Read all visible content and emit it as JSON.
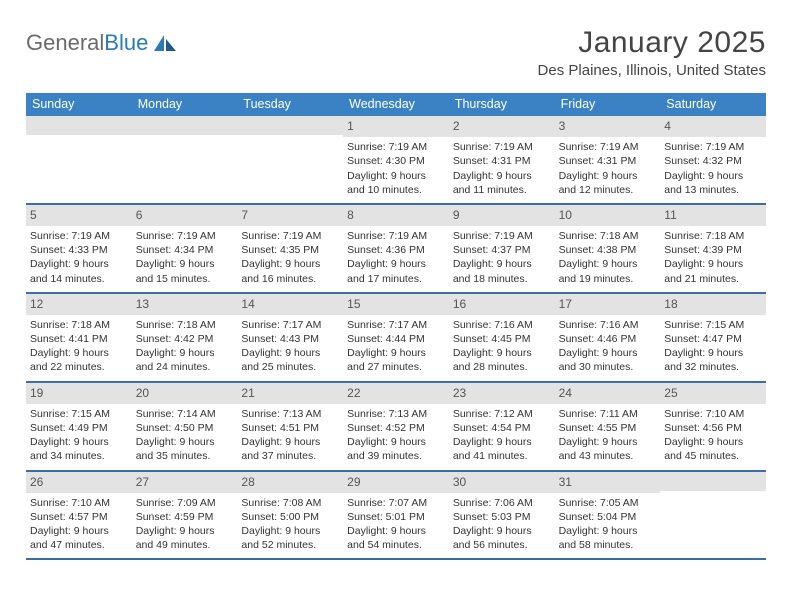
{
  "logo": {
    "word1": "General",
    "word2": "Blue"
  },
  "title": "January 2025",
  "location": "Des Plaines, Illinois, United States",
  "colors": {
    "header_bg": "#3a82c4",
    "header_text": "#ffffff",
    "daynum_bg": "#e3e3e3",
    "week_border": "#3a6ea5",
    "logo_gray": "#6a6a6a",
    "logo_blue": "#2a7ab9"
  },
  "weekdays": [
    "Sunday",
    "Monday",
    "Tuesday",
    "Wednesday",
    "Thursday",
    "Friday",
    "Saturday"
  ],
  "cells": [
    {
      "n": "",
      "l": []
    },
    {
      "n": "",
      "l": []
    },
    {
      "n": "",
      "l": []
    },
    {
      "n": "1",
      "l": [
        "Sunrise: 7:19 AM",
        "Sunset: 4:30 PM",
        "Daylight: 9 hours",
        "and 10 minutes."
      ]
    },
    {
      "n": "2",
      "l": [
        "Sunrise: 7:19 AM",
        "Sunset: 4:31 PM",
        "Daylight: 9 hours",
        "and 11 minutes."
      ]
    },
    {
      "n": "3",
      "l": [
        "Sunrise: 7:19 AM",
        "Sunset: 4:31 PM",
        "Daylight: 9 hours",
        "and 12 minutes."
      ]
    },
    {
      "n": "4",
      "l": [
        "Sunrise: 7:19 AM",
        "Sunset: 4:32 PM",
        "Daylight: 9 hours",
        "and 13 minutes."
      ]
    },
    {
      "n": "5",
      "l": [
        "Sunrise: 7:19 AM",
        "Sunset: 4:33 PM",
        "Daylight: 9 hours",
        "and 14 minutes."
      ]
    },
    {
      "n": "6",
      "l": [
        "Sunrise: 7:19 AM",
        "Sunset: 4:34 PM",
        "Daylight: 9 hours",
        "and 15 minutes."
      ]
    },
    {
      "n": "7",
      "l": [
        "Sunrise: 7:19 AM",
        "Sunset: 4:35 PM",
        "Daylight: 9 hours",
        "and 16 minutes."
      ]
    },
    {
      "n": "8",
      "l": [
        "Sunrise: 7:19 AM",
        "Sunset: 4:36 PM",
        "Daylight: 9 hours",
        "and 17 minutes."
      ]
    },
    {
      "n": "9",
      "l": [
        "Sunrise: 7:19 AM",
        "Sunset: 4:37 PM",
        "Daylight: 9 hours",
        "and 18 minutes."
      ]
    },
    {
      "n": "10",
      "l": [
        "Sunrise: 7:18 AM",
        "Sunset: 4:38 PM",
        "Daylight: 9 hours",
        "and 19 minutes."
      ]
    },
    {
      "n": "11",
      "l": [
        "Sunrise: 7:18 AM",
        "Sunset: 4:39 PM",
        "Daylight: 9 hours",
        "and 21 minutes."
      ]
    },
    {
      "n": "12",
      "l": [
        "Sunrise: 7:18 AM",
        "Sunset: 4:41 PM",
        "Daylight: 9 hours",
        "and 22 minutes."
      ]
    },
    {
      "n": "13",
      "l": [
        "Sunrise: 7:18 AM",
        "Sunset: 4:42 PM",
        "Daylight: 9 hours",
        "and 24 minutes."
      ]
    },
    {
      "n": "14",
      "l": [
        "Sunrise: 7:17 AM",
        "Sunset: 4:43 PM",
        "Daylight: 9 hours",
        "and 25 minutes."
      ]
    },
    {
      "n": "15",
      "l": [
        "Sunrise: 7:17 AM",
        "Sunset: 4:44 PM",
        "Daylight: 9 hours",
        "and 27 minutes."
      ]
    },
    {
      "n": "16",
      "l": [
        "Sunrise: 7:16 AM",
        "Sunset: 4:45 PM",
        "Daylight: 9 hours",
        "and 28 minutes."
      ]
    },
    {
      "n": "17",
      "l": [
        "Sunrise: 7:16 AM",
        "Sunset: 4:46 PM",
        "Daylight: 9 hours",
        "and 30 minutes."
      ]
    },
    {
      "n": "18",
      "l": [
        "Sunrise: 7:15 AM",
        "Sunset: 4:47 PM",
        "Daylight: 9 hours",
        "and 32 minutes."
      ]
    },
    {
      "n": "19",
      "l": [
        "Sunrise: 7:15 AM",
        "Sunset: 4:49 PM",
        "Daylight: 9 hours",
        "and 34 minutes."
      ]
    },
    {
      "n": "20",
      "l": [
        "Sunrise: 7:14 AM",
        "Sunset: 4:50 PM",
        "Daylight: 9 hours",
        "and 35 minutes."
      ]
    },
    {
      "n": "21",
      "l": [
        "Sunrise: 7:13 AM",
        "Sunset: 4:51 PM",
        "Daylight: 9 hours",
        "and 37 minutes."
      ]
    },
    {
      "n": "22",
      "l": [
        "Sunrise: 7:13 AM",
        "Sunset: 4:52 PM",
        "Daylight: 9 hours",
        "and 39 minutes."
      ]
    },
    {
      "n": "23",
      "l": [
        "Sunrise: 7:12 AM",
        "Sunset: 4:54 PM",
        "Daylight: 9 hours",
        "and 41 minutes."
      ]
    },
    {
      "n": "24",
      "l": [
        "Sunrise: 7:11 AM",
        "Sunset: 4:55 PM",
        "Daylight: 9 hours",
        "and 43 minutes."
      ]
    },
    {
      "n": "25",
      "l": [
        "Sunrise: 7:10 AM",
        "Sunset: 4:56 PM",
        "Daylight: 9 hours",
        "and 45 minutes."
      ]
    },
    {
      "n": "26",
      "l": [
        "Sunrise: 7:10 AM",
        "Sunset: 4:57 PM",
        "Daylight: 9 hours",
        "and 47 minutes."
      ]
    },
    {
      "n": "27",
      "l": [
        "Sunrise: 7:09 AM",
        "Sunset: 4:59 PM",
        "Daylight: 9 hours",
        "and 49 minutes."
      ]
    },
    {
      "n": "28",
      "l": [
        "Sunrise: 7:08 AM",
        "Sunset: 5:00 PM",
        "Daylight: 9 hours",
        "and 52 minutes."
      ]
    },
    {
      "n": "29",
      "l": [
        "Sunrise: 7:07 AM",
        "Sunset: 5:01 PM",
        "Daylight: 9 hours",
        "and 54 minutes."
      ]
    },
    {
      "n": "30",
      "l": [
        "Sunrise: 7:06 AM",
        "Sunset: 5:03 PM",
        "Daylight: 9 hours",
        "and 56 minutes."
      ]
    },
    {
      "n": "31",
      "l": [
        "Sunrise: 7:05 AM",
        "Sunset: 5:04 PM",
        "Daylight: 9 hours",
        "and 58 minutes."
      ]
    },
    {
      "n": "",
      "l": []
    }
  ]
}
